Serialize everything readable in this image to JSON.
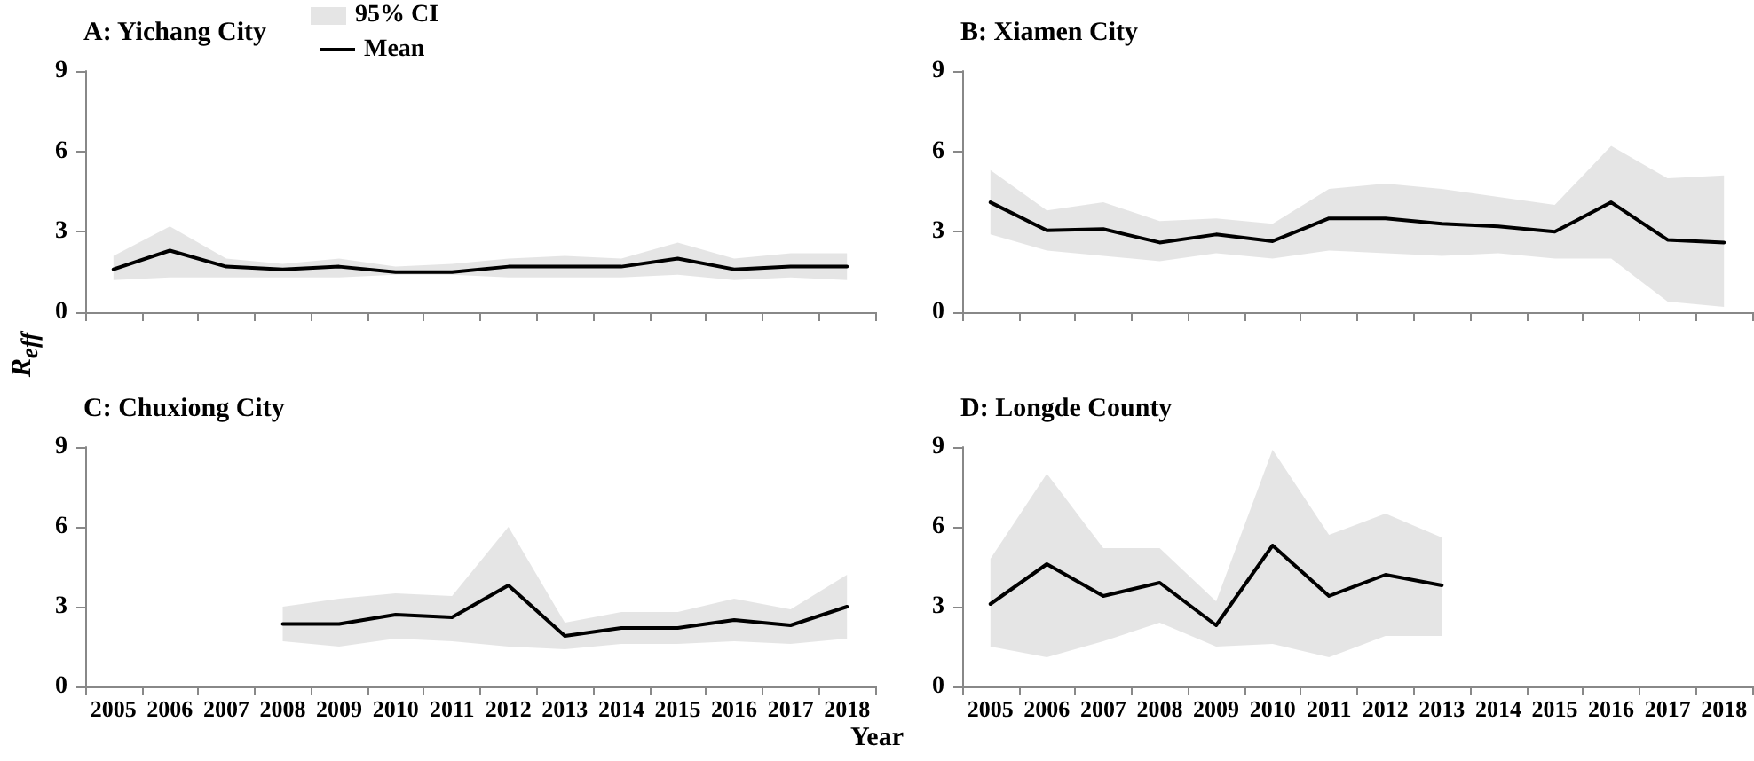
{
  "chart_data": [
    {
      "type": "line",
      "title": "A: Yichang City",
      "ylabel": "R$_{eff}$",
      "annotations": [
        "95% CI"
      ],
      "categories": [
        "2005",
        "2006",
        "2007",
        "2008",
        "2009",
        "2010",
        "2011",
        "2012",
        "2013",
        "2014",
        "2015",
        "2016",
        "2017",
        "2018"
      ],
      "ylim": [
        0,
        9
      ],
      "yticks": [
        0,
        3,
        6,
        9
      ],
      "grid": false,
      "tick_labels": "y",
      "legend": "top",
      "series": [
        {
          "name": "Mean",
          "color": "#000000",
          "values": [
            1.6,
            2.3,
            1.7,
            1.6,
            1.7,
            1.5,
            1.5,
            1.7,
            1.7,
            1.7,
            2.0,
            1.6,
            1.7,
            1.7
          ],
          "lower": [
            1.2,
            1.3,
            1.3,
            1.3,
            1.3,
            1.4,
            1.4,
            1.3,
            1.3,
            1.3,
            1.4,
            1.2,
            1.3,
            1.2
          ],
          "upper": [
            2.1,
            3.2,
            2.0,
            1.8,
            2.0,
            1.7,
            1.8,
            2.0,
            2.1,
            2.0,
            2.6,
            2.0,
            2.2,
            2.2
          ]
        }
      ]
    },
    {
      "type": "line",
      "title": "B: Xiamen City",
      "categories": [
        "2005",
        "2006",
        "2007",
        "2008",
        "2009",
        "2010",
        "2011",
        "2012",
        "2013",
        "2014",
        "2015",
        "2016",
        "2017",
        "2018"
      ],
      "ylim": [
        0,
        9
      ],
      "yticks": [
        0,
        3,
        6,
        9
      ],
      "grid": false,
      "tick_labels": "y",
      "series": [
        {
          "color": "#000000",
          "values": [
            4.1,
            3.05,
            3.1,
            2.6,
            2.9,
            2.65,
            3.5,
            3.5,
            3.3,
            3.2,
            3.0,
            4.1,
            2.7,
            2.6
          ],
          "lower": [
            2.9,
            2.3,
            2.1,
            1.9,
            2.2,
            2.0,
            2.3,
            2.2,
            2.1,
            2.2,
            2.0,
            2.0,
            0.4,
            0.2
          ],
          "upper": [
            5.3,
            3.8,
            4.1,
            3.4,
            3.5,
            3.3,
            4.6,
            4.8,
            4.6,
            4.3,
            4.0,
            6.2,
            5.0,
            5.1
          ]
        }
      ]
    },
    {
      "type": "line",
      "title": "C: Chuxiong City",
      "categories": [
        "2005",
        "2006",
        "2007",
        "2008",
        "2009",
        "2010",
        "2011",
        "2012",
        "2013",
        "2014",
        "2015",
        "2016",
        "2017",
        "2018"
      ],
      "ylim": [
        0,
        9
      ],
      "yticks": [
        0,
        3,
        6,
        9
      ],
      "grid": false,
      "series": [
        {
          "color": "#000000",
          "values": [
            null,
            null,
            null,
            2.35,
            2.35,
            2.7,
            2.6,
            3.8,
            1.9,
            2.2,
            2.2,
            2.5,
            2.3,
            3.0
          ],
          "lower": [
            null,
            null,
            null,
            1.7,
            1.5,
            1.8,
            1.7,
            1.5,
            1.4,
            1.6,
            1.6,
            1.7,
            1.6,
            1.8
          ],
          "upper": [
            null,
            null,
            null,
            3.0,
            3.3,
            3.5,
            3.4,
            6.0,
            2.4,
            2.8,
            2.8,
            3.3,
            2.9,
            4.2
          ]
        }
      ]
    },
    {
      "type": "line",
      "title": "D: Longde County",
      "xlabel": "Year",
      "categories": [
        "2005",
        "2006",
        "2007",
        "2008",
        "2009",
        "2010",
        "2011",
        "2012",
        "2013",
        "2014",
        "2015",
        "2016",
        "2017",
        "2018"
      ],
      "ylim": [
        0,
        9
      ],
      "yticks": [
        0,
        3,
        6,
        9
      ],
      "grid": false,
      "series": [
        {
          "color": "#000000",
          "values": [
            3.1,
            4.6,
            3.4,
            3.9,
            2.3,
            5.3,
            3.4,
            4.2,
            3.8,
            null,
            null,
            null,
            null,
            null
          ],
          "lower": [
            1.5,
            1.1,
            1.7,
            2.4,
            1.5,
            1.6,
            1.1,
            1.9,
            1.9,
            null,
            null,
            null,
            null,
            null
          ],
          "upper": [
            4.8,
            8.0,
            5.2,
            5.2,
            3.2,
            8.9,
            5.7,
            6.5,
            5.6,
            null,
            null,
            null,
            null,
            null
          ]
        }
      ]
    }
  ]
}
